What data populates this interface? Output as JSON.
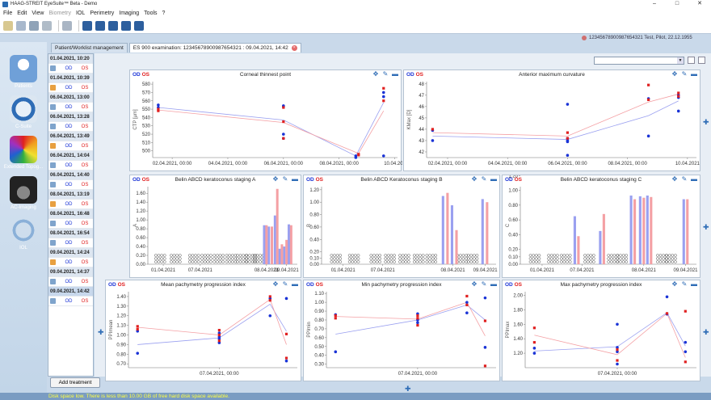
{
  "app": {
    "title": "HAAG-STREIT EyeSuite™  Beta  - Demo",
    "menu": [
      "File",
      "Edit",
      "View",
      "Biometry",
      "IOL",
      "Perimetry",
      "Imaging",
      "Tools",
      "?"
    ],
    "menu_disabled": [
      "Biometry"
    ],
    "window_controls": [
      "–",
      "□",
      "✕"
    ]
  },
  "patient_status": "12345678900987654321 Test, Pilot, 22.12.1955",
  "nav": [
    {
      "label": "Patients",
      "icon": "patients-icon"
    },
    {
      "label": "C-Suite",
      "icon": "c-suite-icon"
    },
    {
      "label": "Extended Topog...",
      "icon": "topography-icon"
    },
    {
      "label": "AC-Imaging",
      "icon": "ac-imaging-icon"
    },
    {
      "label": "IOL",
      "icon": "iol-icon"
    }
  ],
  "tabs": [
    {
      "label": "Patient/Worklist management"
    },
    {
      "label": "ES 900 examination: 12345678900987654321 : 09.04.2021, 14:42"
    }
  ],
  "worklist": [
    {
      "date": "01.04.2021, 10:20",
      "od": "OD",
      "os": "OS"
    },
    {
      "date": "01.04.2021, 10:39",
      "od": "OD",
      "os": "OS"
    },
    {
      "date": "06.04.2021, 13:00",
      "od": "OD",
      "os": "OS"
    },
    {
      "date": "06.04.2021, 13:28",
      "od": "OD",
      "os": "OS"
    },
    {
      "date": "06.04.2021, 13:49",
      "od": "OD",
      "os": "OS"
    },
    {
      "date": "06.04.2021, 14:04",
      "od": "OD",
      "os": "OS"
    },
    {
      "date": "06.04.2021, 14:40",
      "od": "OD",
      "os": "OS"
    },
    {
      "date": "08.04.2021, 13:19",
      "od": "OD",
      "os": "OS"
    },
    {
      "date": "08.04.2021, 16:48",
      "od": "OD",
      "os": "OS"
    },
    {
      "date": "08.04.2021, 16:54",
      "od": "OD",
      "os": "OS"
    },
    {
      "date": "09.04.2021, 14:24",
      "od": "OD",
      "os": "OS"
    },
    {
      "date": "09.04.2021, 14:37",
      "od": "OD",
      "os": "OS"
    },
    {
      "date": "09.04.2021, 14:42",
      "od": "OD",
      "os": "OS"
    }
  ],
  "add_treatment": "Add treatment",
  "disk_warning": "Disk space low. There is less than 10.00 GB of free hard disk space available.",
  "eye_labels": {
    "od": "OD",
    "os": "OS"
  },
  "colors": {
    "od": "#1a33d6",
    "os": "#e02020",
    "od_light": "#9aa0f0",
    "os_light": "#f4a0a4"
  },
  "chart_data": [
    {
      "type": "scatter",
      "title": "Corneal thinnest point",
      "ylabel": "CTP [µm]",
      "yticks": [
        500,
        510,
        520,
        530,
        540,
        550,
        560,
        570,
        580
      ],
      "ylim": [
        492,
        583
      ],
      "xticks": [
        "02.04.2021, 00:00",
        "04.04.2021, 00:00",
        "06.04.2021, 00:00",
        "08.04.2021, 00:00",
        "10.04.202"
      ],
      "xticks_pos": [
        1.5,
        3.5,
        5.5,
        7.5,
        9.5
      ],
      "xlim": [
        0.8,
        9.6
      ],
      "series": [
        {
          "name": "OD",
          "x": [
            1,
            1,
            5.5,
            5.5,
            5.5,
            5.5,
            8.1,
            8.1,
            9.1,
            9.1,
            9.1
          ],
          "y": [
            552,
            555,
            553,
            554,
            520,
            515,
            494,
            492,
            570,
            565,
            494
          ]
        },
        {
          "name": "OS",
          "x": [
            1,
            1,
            5.5,
            5.5,
            5.5,
            8.2,
            8.2,
            9.1,
            9.1
          ],
          "y": [
            550,
            548,
            552,
            535,
            515,
            496,
            495,
            575,
            560
          ]
        }
      ],
      "trends": [
        {
          "name": "OD",
          "x": [
            1,
            5.5,
            8.1,
            9.1
          ],
          "y": [
            552,
            537,
            494,
            558
          ]
        },
        {
          "name": "OS",
          "x": [
            1,
            5.5,
            8.2,
            9.1
          ],
          "y": [
            549,
            534,
            497,
            548
          ]
        }
      ]
    },
    {
      "type": "scatter",
      "title": "Anterior maximum curvature",
      "ylabel": "KMax [D]",
      "yticks": [
        42,
        43,
        44,
        45,
        46,
        47,
        48
      ],
      "ylim": [
        41.5,
        48.2
      ],
      "xticks": [
        "02.04.2021, 00:00",
        "04.04.2021, 00:00",
        "06.04.2021, 00:00",
        "08.04.2021, 00:00",
        "10.04.2021"
      ],
      "xticks_pos": [
        1.5,
        3.5,
        5.5,
        7.5,
        9.5
      ],
      "xlim": [
        0.8,
        9.8
      ],
      "series": [
        {
          "name": "OD",
          "x": [
            1,
            1,
            5.5,
            5.5,
            5.5,
            5.5,
            5.5,
            8.2,
            8.2,
            9.2,
            9.2,
            9.2
          ],
          "y": [
            43.9,
            43.0,
            46.2,
            43.2,
            43.0,
            42.9,
            41.7,
            43.4,
            46.7,
            47.0,
            46.8,
            45.6
          ]
        },
        {
          "name": "OS",
          "x": [
            1,
            5.5,
            5.5,
            8.2,
            8.2,
            9.2,
            9.2
          ],
          "y": [
            44.0,
            43.7,
            43.2,
            47.9,
            46.6,
            47.2,
            46.9
          ]
        }
      ],
      "trends": [
        {
          "name": "OD",
          "x": [
            1,
            5.5,
            8.2,
            9.2
          ],
          "y": [
            43.4,
            43.1,
            45.2,
            46.5
          ]
        },
        {
          "name": "OS",
          "x": [
            1,
            5.5,
            8.2,
            9.2
          ],
          "y": [
            43.7,
            43.4,
            46.4,
            47.1
          ]
        }
      ]
    },
    {
      "type": "bar",
      "title": "Belin ABCD keratoconus staging A",
      "ylabel": "A",
      "yticks": [
        "0.00",
        "0.20",
        "0.40",
        "0.60",
        "0.80",
        "1.00",
        "1.20",
        "1.40",
        "1.60"
      ],
      "ylim": [
        0,
        1.75
      ],
      "xticks": [
        "01.04.2021",
        "07.04.2021",
        "08.04.2021",
        "09.04.2021"
      ],
      "xticks_pos": [
        1.2,
        3.6,
        7.9,
        9.2
      ],
      "xlim": [
        0.2,
        9.9
      ],
      "od": {
        "x": [
          7.75,
          8.05,
          8.45,
          8.75,
          9.05,
          9.35
        ],
        "values": [
          0.88,
          0.85,
          1.1,
          0.35,
          0.4,
          0.9
        ]
      },
      "os": {
        "x": [
          7.9,
          8.25,
          8.6,
          8.9,
          9.2,
          9.5
        ],
        "values": [
          0.88,
          0.85,
          1.7,
          0.45,
          0.55,
          0.88
        ]
      },
      "zero_groups": [
        1.0,
        2.0,
        3.2,
        4.0,
        4.8,
        5.6,
        6.3,
        6.9,
        7.4
      ]
    },
    {
      "type": "bar",
      "title": "Belin ABCD Keratoconus staging B",
      "ylabel": "B",
      "yticks": [
        "0.00",
        "0.10",
        "0.20",
        "0.40",
        "0.60",
        "0.80",
        "1.00",
        "1.20"
      ],
      "ylim": [
        0,
        1.25
      ],
      "xticks": [
        "01.04.2021",
        "07.04.2021",
        "08.04.2021",
        "09.04.2021"
      ],
      "xticks_pos": [
        1.4,
        3.6,
        7.5,
        9.3
      ],
      "xlim": [
        0.2,
        9.9
      ],
      "od": {
        "x": [
          6.95,
          7.45,
          9.15
        ],
        "values": [
          1.1,
          0.95,
          1.05
        ]
      },
      "os": {
        "x": [
          7.2,
          7.7,
          9.4
        ],
        "values": [
          1.15,
          0.55,
          1.0
        ]
      },
      "zero_groups": [
        1.0,
        2.0,
        3.2,
        4.0,
        4.8,
        5.6,
        6.3,
        8.0,
        8.6
      ]
    },
    {
      "type": "bar",
      "title": "Belin ABCD keratoconus staging C",
      "ylabel": "C",
      "yticks": [
        "0.00",
        "0.10",
        "0.20",
        "0.40",
        "0.60",
        "0.80",
        "1.00",
        "1.20"
      ],
      "ylim": [
        0,
        1.05
      ],
      "xticks": [
        "01.04.2021",
        "07.04.2021",
        "08.04.2021",
        "09.04.2021"
      ],
      "xticks_pos": [
        1.4,
        3.6,
        7.0,
        9.3
      ],
      "xlim": [
        0.2,
        9.9
      ],
      "od": {
        "x": [
          3.2,
          4.6,
          6.3,
          6.8,
          7.2,
          9.2
        ],
        "values": [
          0.65,
          0.45,
          0.93,
          0.92,
          0.93,
          0.88
        ]
      },
      "os": {
        "x": [
          3.4,
          4.8,
          6.5,
          7.0,
          7.4,
          9.4
        ],
        "values": [
          0.38,
          0.68,
          0.88,
          0.9,
          0.91,
          0.88
        ]
      },
      "zero_groups": [
        1.0,
        2.0,
        2.7,
        4.0,
        5.3,
        5.8,
        8.0,
        8.5
      ]
    },
    {
      "type": "scatter",
      "title": "Mean pachymetry progression index",
      "ylabel": "PPImean",
      "yticks": [
        "0.70",
        "0.80",
        "0.90",
        "1.00",
        "1.10",
        "1.20",
        "1.30",
        "1.40"
      ],
      "ylim": [
        0.66,
        1.45
      ],
      "xticks": [
        "07.04.2021, 00:00"
      ],
      "xticks_pos": [
        5.5
      ],
      "xlim": [
        0.5,
        9.8
      ],
      "series": [
        {
          "name": "OD",
          "x": [
            1,
            1,
            5.5,
            5.5,
            5.5,
            5.5,
            8.3,
            8.3,
            9.2,
            9.2
          ],
          "y": [
            0.81,
            1.04,
            1.02,
            0.98,
            0.92,
            0.96,
            1.2,
            1.38,
            0.73,
            1.38
          ]
        },
        {
          "name": "OS",
          "x": [
            1,
            1,
            5.5,
            5.5,
            5.5,
            8.3,
            8.3,
            9.2,
            9.2
          ],
          "y": [
            1.09,
            1.06,
            1.05,
            1.0,
            0.94,
            1.4,
            1.36,
            1.01,
            0.76
          ]
        }
      ],
      "trends": [
        {
          "name": "OD",
          "x": [
            1,
            5.5,
            8.3,
            9.2
          ],
          "y": [
            0.9,
            0.97,
            1.32,
            1.04
          ]
        },
        {
          "name": "OS",
          "x": [
            1,
            5.5,
            8.3,
            9.2
          ],
          "y": [
            1.08,
            1.0,
            1.37,
            0.9
          ]
        }
      ]
    },
    {
      "type": "scatter",
      "title": "Min pachymetry progression index",
      "ylabel": "PPImin",
      "yticks": [
        "0.30",
        "0.40",
        "0.50",
        "0.60",
        "0.70",
        "0.80",
        "0.90",
        "1.00",
        "1.10"
      ],
      "ylim": [
        0.26,
        1.12
      ],
      "xticks": [
        "07.04.2021, 00:00"
      ],
      "xticks_pos": [
        5.5
      ],
      "xlim": [
        0.5,
        9.8
      ],
      "series": [
        {
          "name": "OD",
          "x": [
            1,
            1,
            5.5,
            5.5,
            5.5,
            8.2,
            8.2,
            9.2,
            9.2
          ],
          "y": [
            0.44,
            0.86,
            0.87,
            0.8,
            0.77,
            1.0,
            0.88,
            1.05,
            0.49
          ]
        },
        {
          "name": "OS",
          "x": [
            1,
            1,
            5.5,
            5.5,
            5.5,
            8.2,
            8.2,
            9.2,
            9.2
          ],
          "y": [
            0.85,
            0.82,
            0.85,
            0.82,
            0.74,
            1.07,
            0.97,
            0.79,
            0.28
          ]
        }
      ],
      "trends": [
        {
          "name": "OD",
          "x": [
            1,
            5.5,
            8.2,
            9.2
          ],
          "y": [
            0.64,
            0.8,
            0.97,
            0.8
          ]
        },
        {
          "name": "OS",
          "x": [
            1,
            5.5,
            8.2,
            9.2
          ],
          "y": [
            0.84,
            0.81,
            1.0,
            0.62
          ]
        }
      ]
    },
    {
      "type": "scatter",
      "title": "Max pachymetry progression index",
      "ylabel": "PPImax",
      "yticks": [
        "1.20",
        "1.40",
        "1.60",
        "1.80",
        "2.00"
      ],
      "ylim": [
        1.0,
        2.05
      ],
      "xticks": [
        "07.04.2021, 00:00"
      ],
      "xticks_pos": [
        5.5
      ],
      "xlim": [
        0.5,
        9.8
      ],
      "series": [
        {
          "name": "OD",
          "x": [
            1,
            1,
            5.5,
            5.5,
            5.5,
            5.5,
            8.2,
            8.2,
            9.2,
            9.2
          ],
          "y": [
            1.27,
            1.2,
            1.6,
            1.28,
            1.22,
            1.05,
            1.74,
            1.98,
            1.35,
            1.22
          ]
        },
        {
          "name": "OS",
          "x": [
            1,
            1,
            5.5,
            5.5,
            8.2,
            9.2,
            9.2
          ],
          "y": [
            1.55,
            1.35,
            1.25,
            1.1,
            1.75,
            1.78,
            1.08
          ]
        }
      ],
      "trends": [
        {
          "name": "OD",
          "x": [
            1,
            5.5,
            8.2,
            9.2
          ],
          "y": [
            1.23,
            1.29,
            1.76,
            1.3
          ]
        },
        {
          "name": "OS",
          "x": [
            1,
            5.5,
            8.2,
            9.2
          ],
          "y": [
            1.45,
            1.18,
            1.75,
            1.14
          ]
        }
      ]
    }
  ]
}
